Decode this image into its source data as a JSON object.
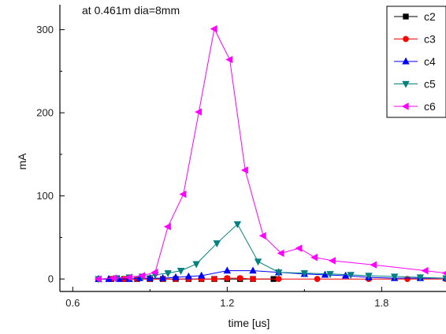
{
  "chart_data": {
    "type": "line",
    "annotation": "at 0.461m dia=8mm",
    "xlabel": "time [us]",
    "ylabel": "mA",
    "xlim": [
      0.55,
      2.05
    ],
    "ylim": [
      -15,
      330
    ],
    "xticks": [
      0.6,
      1.2,
      1.8
    ],
    "xtick_labels": [
      "0.6",
      "1.2",
      "1.8"
    ],
    "yticks": [
      0,
      100,
      200,
      300
    ],
    "ytick_labels": [
      "0",
      "100",
      "200",
      "300"
    ],
    "grid": false,
    "legend_position": "top-right",
    "series": [
      {
        "name": "c2",
        "color": "#000000",
        "marker": "square",
        "x": [
          0.7,
          0.75,
          0.8,
          0.85,
          0.9,
          0.95,
          1.0,
          1.05,
          1.1,
          1.15,
          1.2,
          1.25,
          1.3,
          1.38
        ],
        "y": [
          0,
          0,
          0,
          0,
          0,
          0,
          0,
          0,
          0,
          0,
          0,
          0,
          0,
          0
        ]
      },
      {
        "name": "c3",
        "color": "#ff0000",
        "marker": "circle",
        "x": [
          0.7,
          0.75,
          0.8,
          0.85,
          0.9,
          0.95,
          1.0,
          1.05,
          1.1,
          1.15,
          1.2,
          1.25,
          1.3,
          1.4,
          1.55,
          1.75,
          1.9,
          2.05
        ],
        "y": [
          0,
          0,
          0,
          0,
          0,
          0,
          0,
          0,
          0,
          0,
          1,
          1,
          0,
          0,
          0,
          0,
          0,
          0
        ]
      },
      {
        "name": "c4",
        "color": "#0000ff",
        "marker": "triangle-up",
        "x": [
          0.7,
          0.74,
          0.78,
          0.82,
          0.86,
          0.9,
          0.95,
          1.0,
          1.05,
          1.1,
          1.2,
          1.3,
          1.4,
          1.5,
          1.58,
          1.66,
          1.75,
          1.85,
          1.95,
          2.05
        ],
        "y": [
          0,
          0,
          0,
          0,
          1,
          1,
          1,
          2,
          3,
          4,
          10,
          10,
          8,
          6,
          5,
          4,
          2,
          1,
          1,
          1
        ]
      },
      {
        "name": "c5",
        "color": "#008080",
        "marker": "triangle-down",
        "x": [
          0.7,
          0.77,
          0.82,
          0.87,
          0.92,
          0.97,
          1.02,
          1.08,
          1.16,
          1.24,
          1.32,
          1.4,
          1.5,
          1.6,
          1.68,
          1.75,
          1.85,
          1.95,
          2.05
        ],
        "y": [
          0,
          1,
          2,
          3,
          5,
          7,
          10,
          18,
          43,
          66,
          21,
          8,
          7,
          6,
          5,
          4,
          3,
          2,
          1
        ]
      },
      {
        "name": "c6",
        "color": "#ff00ff",
        "marker": "triangle-left",
        "x": [
          0.7,
          0.76,
          0.82,
          0.87,
          0.92,
          0.97,
          1.03,
          1.09,
          1.15,
          1.21,
          1.27,
          1.34,
          1.41,
          1.48,
          1.54,
          1.61,
          1.77,
          1.97,
          2.05
        ],
        "y": [
          0,
          1,
          2,
          4,
          8,
          63,
          102,
          201,
          301,
          264,
          131,
          52,
          31,
          37,
          26,
          22,
          17,
          10,
          7
        ]
      }
    ]
  }
}
